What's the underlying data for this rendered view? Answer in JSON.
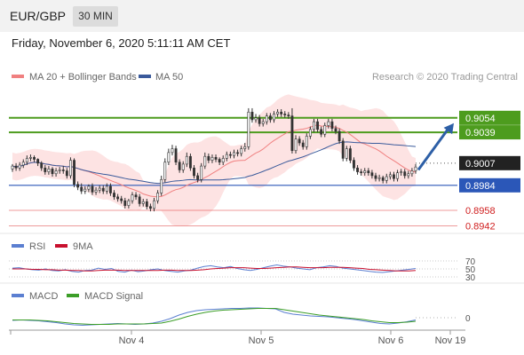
{
  "header": {
    "pair": "EUR/GBP",
    "timeframe": "30 MIN",
    "datetime": "Friday, November 6, 2020 5:11:11 AM CET"
  },
  "legend": {
    "ma20_label": "MA 20 + Bollinger Bands",
    "ma50_label": "MA 50",
    "attribution": "Research © 2020 Trading Central",
    "rsi_label": "RSI",
    "rsi_ma_label": "9MA",
    "macd_label": "MACD",
    "macd_signal_label": "MACD Signal"
  },
  "colors": {
    "ma20": "#f08080",
    "bollinger_fill": "#fde3e3",
    "ma50": "#3a5a9b",
    "resistance": "#4d9c1e",
    "support": "#2b57b8",
    "minor_level": "#e04040",
    "current_price": "#222222",
    "arrow": "#2d5fa6",
    "rsi": "#5b7fd1",
    "rsi_ma": "#c8102e",
    "macd": "#5b7fd1",
    "macd_signal": "#3c9e28",
    "candle": "#333333"
  },
  "chart_data": [
    {
      "type": "candlestick",
      "panel": "price",
      "x_labels": [
        "Nov 4",
        "Nov 5",
        "Nov 6",
        "Nov 19"
      ],
      "ylim": [
        8935,
        9075
      ],
      "y_scale_note": "prices in 1/10000 units",
      "close": [
        9004,
        9002,
        9005,
        9008,
        9012,
        9013,
        9011,
        9007,
        9002,
        8998,
        9001,
        8996,
        8999,
        9000,
        8999,
        8994,
        9010,
        8985,
        8982,
        8978,
        8980,
        8983,
        8977,
        8979,
        8981,
        8978,
        8983,
        8976,
        8972,
        8970,
        8968,
        8963,
        8968,
        8974,
        8972,
        8965,
        8967,
        8962,
        8960,
        8968,
        8976,
        8990,
        9008,
        9018,
        9022,
        9008,
        9000,
        9006,
        9014,
        9002,
        8994,
        8990,
        9004,
        9014,
        9010,
        9013,
        9011,
        9008,
        9012,
        9016,
        9015,
        9018,
        9017,
        9022,
        9024,
        9060,
        9052,
        9054,
        9048,
        9050,
        9056,
        9052,
        9058,
        9060,
        9058,
        9057,
        9056,
        9020,
        9032,
        9028,
        9024,
        9035,
        9042,
        9050,
        9042,
        9037,
        9046,
        9050,
        9043,
        9040,
        9030,
        9012,
        9022,
        9010,
        9002,
        8998,
        8997,
        8999,
        8997,
        8994,
        8991,
        8992,
        8989,
        8993,
        8995,
        8991,
        8997,
        8998,
        8994,
        8996,
        8999,
        9003
      ],
      "open": [
        9001,
        9004,
        9002,
        9005,
        9008,
        9012,
        9013,
        9011,
        9007,
        9002,
        8998,
        9001,
        8996,
        8999,
        9000,
        8999,
        8994,
        9010,
        8985,
        8982,
        8978,
        8980,
        8983,
        8977,
        8979,
        8981,
        8978,
        8983,
        8976,
        8972,
        8970,
        8968,
        8963,
        8968,
        8974,
        8972,
        8965,
        8967,
        8962,
        8960,
        8968,
        8976,
        8990,
        9008,
        9018,
        9022,
        9008,
        9000,
        9006,
        9014,
        9002,
        8994,
        8990,
        9004,
        9014,
        9010,
        9013,
        9011,
        9008,
        9012,
        9016,
        9015,
        9018,
        9017,
        9022,
        9024,
        9060,
        9052,
        9054,
        9048,
        9050,
        9056,
        9052,
        9058,
        9060,
        9058,
        9057,
        9056,
        9020,
        9032,
        9028,
        9024,
        9035,
        9042,
        9050,
        9042,
        9037,
        9046,
        9050,
        9043,
        9040,
        9030,
        9012,
        9022,
        9010,
        9002,
        8998,
        8997,
        8999,
        8997,
        8994,
        8991,
        8992,
        8989,
        8993,
        8995,
        8991,
        8997,
        8998,
        8994,
        8996,
        8999
      ],
      "high": [
        9006,
        9007,
        9008,
        9011,
        9015,
        9016,
        9015,
        9012,
        9009,
        9005,
        9004,
        9003,
        9002,
        9003,
        9004,
        9002,
        9013,
        9012,
        8988,
        8986,
        8983,
        8985,
        8986,
        8982,
        8984,
        8984,
        8986,
        8986,
        8979,
        8975,
        8973,
        8971,
        8970,
        8977,
        8977,
        8975,
        8970,
        8970,
        8965,
        8971,
        8979,
        8994,
        9012,
        9022,
        9026,
        9025,
        9011,
        9009,
        9018,
        9017,
        9005,
        8997,
        9007,
        9018,
        9017,
        9016,
        9016,
        9013,
        9015,
        9019,
        9019,
        9021,
        9021,
        9025,
        9028,
        9064,
        9064,
        9058,
        9057,
        9053,
        9059,
        9059,
        9061,
        9063,
        9063,
        9061,
        9060,
        9064,
        9036,
        9035,
        9031,
        9038,
        9045,
        9053,
        9053,
        9045,
        9049,
        9053,
        9053,
        9046,
        9043,
        9033,
        9025,
        9025,
        9013,
        9005,
        9001,
        9002,
        9002,
        9000,
        8997,
        8995,
        8994,
        8996,
        8998,
        8998,
        9000,
        9001,
        9001,
        8999,
        9002,
        9006
      ],
      "low": [
        8998,
        8999,
        8999,
        9002,
        9005,
        9009,
        9008,
        9004,
        8999,
        8995,
        8995,
        8993,
        8993,
        8996,
        8996,
        8991,
        8991,
        8982,
        8979,
        8975,
        8975,
        8977,
        8974,
        8974,
        8976,
        8975,
        8975,
        8973,
        8969,
        8967,
        8965,
        8960,
        8960,
        8965,
        8969,
        8962,
        8962,
        8959,
        8957,
        8957,
        8965,
        8973,
        8987,
        9005,
        9015,
        9005,
        8997,
        8997,
        9003,
        8999,
        8991,
        8987,
        8987,
        9001,
        9007,
        9007,
        9008,
        9005,
        9005,
        9009,
        9012,
        9012,
        9014,
        9014,
        9019,
        9021,
        9049,
        9049,
        9045,
        9045,
        9047,
        9049,
        9049,
        9055,
        9055,
        9054,
        9053,
        9017,
        9017,
        9025,
        9021,
        9021,
        9032,
        9039,
        9039,
        9034,
        9034,
        9043,
        9040,
        9037,
        9027,
        9009,
        9009,
        9007,
        8999,
        8995,
        8994,
        8994,
        8994,
        8991,
        8988,
        8988,
        8986,
        8986,
        8990,
        8988,
        8988,
        8994,
        8991,
        8991,
        8993,
        8996
      ]
    },
    {
      "type": "levels",
      "panel": "price",
      "resistance": [
        9054,
        9039
      ],
      "current": 9007,
      "support": [
        8984
      ],
      "minor": [
        8958,
        8942
      ],
      "labels": {
        "r1": "0.9054",
        "r2": "0.9039",
        "current": "0.9007",
        "s1": "0.8984",
        "m1": "0.8958",
        "m2": "0.8942"
      },
      "projection_arrow": {
        "from": 9000,
        "to": 9054
      }
    },
    {
      "type": "line",
      "panel": "rsi",
      "ylim": [
        20,
        80
      ],
      "ticks": [
        "70",
        "50",
        "30"
      ],
      "series": [
        {
          "name": "RSI",
          "values": [
            52,
            53,
            50,
            48,
            47,
            50,
            46,
            45,
            48,
            44,
            42,
            46,
            47,
            52,
            49,
            51,
            44,
            42,
            47,
            43,
            45,
            48,
            50,
            46,
            44,
            42,
            45,
            47,
            52,
            56,
            58,
            55,
            53,
            56,
            51,
            48,
            46,
            49,
            53,
            57,
            60,
            57,
            55,
            52,
            50,
            48,
            53,
            55,
            58,
            56,
            52,
            50,
            48,
            46,
            44,
            42,
            41,
            43,
            45,
            47,
            49,
            51
          ]
        },
        {
          "name": "9MA",
          "values": [
            50,
            50,
            50,
            49,
            49,
            48,
            48,
            47,
            47,
            46,
            46,
            45,
            45,
            46,
            47,
            47,
            47,
            46,
            46,
            46,
            46,
            46,
            46,
            47,
            47,
            46,
            46,
            46,
            47,
            48,
            50,
            51,
            52,
            53,
            53,
            53,
            52,
            51,
            51,
            52,
            53,
            54,
            55,
            55,
            54,
            53,
            53,
            53,
            54,
            54,
            54,
            53,
            52,
            51,
            49,
            48,
            47,
            46,
            45,
            45,
            45,
            46
          ]
        }
      ]
    },
    {
      "type": "line",
      "panel": "macd",
      "ticks": [
        "0"
      ],
      "series": [
        {
          "name": "MACD",
          "values": [
            -6,
            -5,
            -6,
            -7,
            -9,
            -11,
            -14,
            -16,
            -17,
            -16,
            -15,
            -14,
            -13,
            -14,
            -15,
            -14,
            -12,
            -8,
            -2,
            6,
            12,
            16,
            18,
            19,
            20,
            21,
            21,
            22,
            22,
            21,
            20,
            12,
            8,
            6,
            4,
            3,
            2,
            0,
            -2,
            -4,
            -7,
            -10,
            -13,
            -14,
            -12,
            -9,
            -5
          ]
        },
        {
          "name": "MACD Signal",
          "values": [
            -5,
            -5,
            -5,
            -6,
            -7,
            -9,
            -11,
            -13,
            -14,
            -15,
            -15,
            -15,
            -14,
            -14,
            -14,
            -14,
            -13,
            -12,
            -8,
            -3,
            3,
            8,
            12,
            15,
            17,
            18,
            19,
            20,
            21,
            21,
            21,
            18,
            15,
            12,
            9,
            6,
            4,
            2,
            0,
            -2,
            -4,
            -7,
            -9,
            -11,
            -11,
            -10,
            -8
          ]
        }
      ]
    }
  ]
}
